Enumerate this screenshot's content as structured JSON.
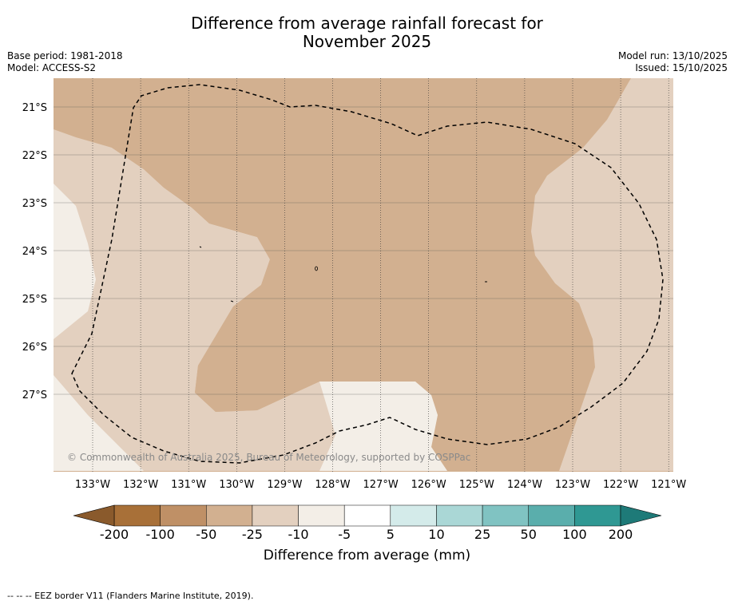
{
  "title_line1": "Difference from average rainfall forecast for",
  "title_line2": "November 2025",
  "meta": {
    "base_period": "Base period: 1981-2018",
    "model": "Model: ACCESS-S2",
    "model_run": "Model run: 13/10/2025",
    "issued": "Issued: 15/10/2025"
  },
  "attribution": "© Commonwealth of Australia 2025, Bureau of Meteorology, supported by COSPPac",
  "lat_labels": [
    "21°S",
    "22°S",
    "23°S",
    "24°S",
    "25°S",
    "26°S",
    "27°S"
  ],
  "lon_labels": [
    "133°W",
    "132°W",
    "131°W",
    "130°W",
    "129°W",
    "128°W",
    "127°W",
    "126°W",
    "125°W",
    "124°W",
    "123°W",
    "122°W",
    "121°W"
  ],
  "colorbar": {
    "labels": [
      "-200",
      "-100",
      "-50",
      "-25",
      "-10",
      "-5",
      "5",
      "10",
      "25",
      "50",
      "100",
      "200"
    ],
    "colors": [
      "#a87038",
      "#bf9066",
      "#d2b090",
      "#e3d0bf",
      "#f3eee7",
      "#ffffff",
      "#d4ebea",
      "#aad7d6",
      "#80c3c2",
      "#5aaeac",
      "#2f9893"
    ],
    "under_color": "#8a5a2c",
    "over_color": "#1e7a78",
    "axis_title": "Difference from average (mm)"
  },
  "region_colors": {
    "light": "#f3eee7",
    "pale": "#e3d0bf",
    "tan": "#d2b090"
  },
  "footer": "--  --  -- EEZ border V11 (Flanders Marine Institute, 2019)."
}
